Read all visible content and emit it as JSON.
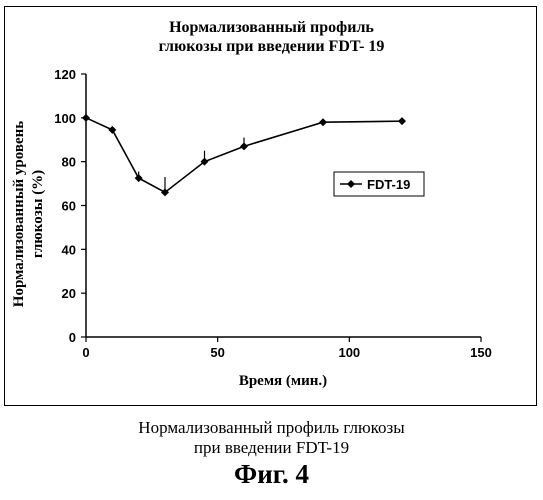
{
  "chart_data": {
    "type": "line",
    "title_lines": [
      "Нормализованный профиль",
      "глюкозы при введении FDT- 19"
    ],
    "xlabel": "Время (мин.)",
    "ylabel_lines": [
      "Нормализованный уровень",
      "глюкозы (%)"
    ],
    "xlim": [
      0,
      150
    ],
    "ylim": [
      0,
      120
    ],
    "x_ticks": [
      0,
      50,
      100,
      150
    ],
    "y_ticks": [
      0,
      20,
      40,
      60,
      80,
      100,
      120
    ],
    "grid": false,
    "legend_position": "right",
    "series": [
      {
        "name": "FDT-19",
        "x": [
          0,
          10,
          20,
          30,
          45,
          60,
          90,
          120
        ],
        "y": [
          100,
          94.5,
          72.5,
          66,
          80,
          87,
          98,
          98.5
        ],
        "error_plus": [
          0,
          0,
          3,
          7,
          5,
          4,
          0,
          0
        ]
      }
    ],
    "colors": {
      "line": "#000000",
      "marker": "#000000"
    }
  },
  "caption_lines": [
    "Нормализованный профиль глюкозы",
    "при введении FDT-19"
  ],
  "figure_label": "Фиг.  4"
}
